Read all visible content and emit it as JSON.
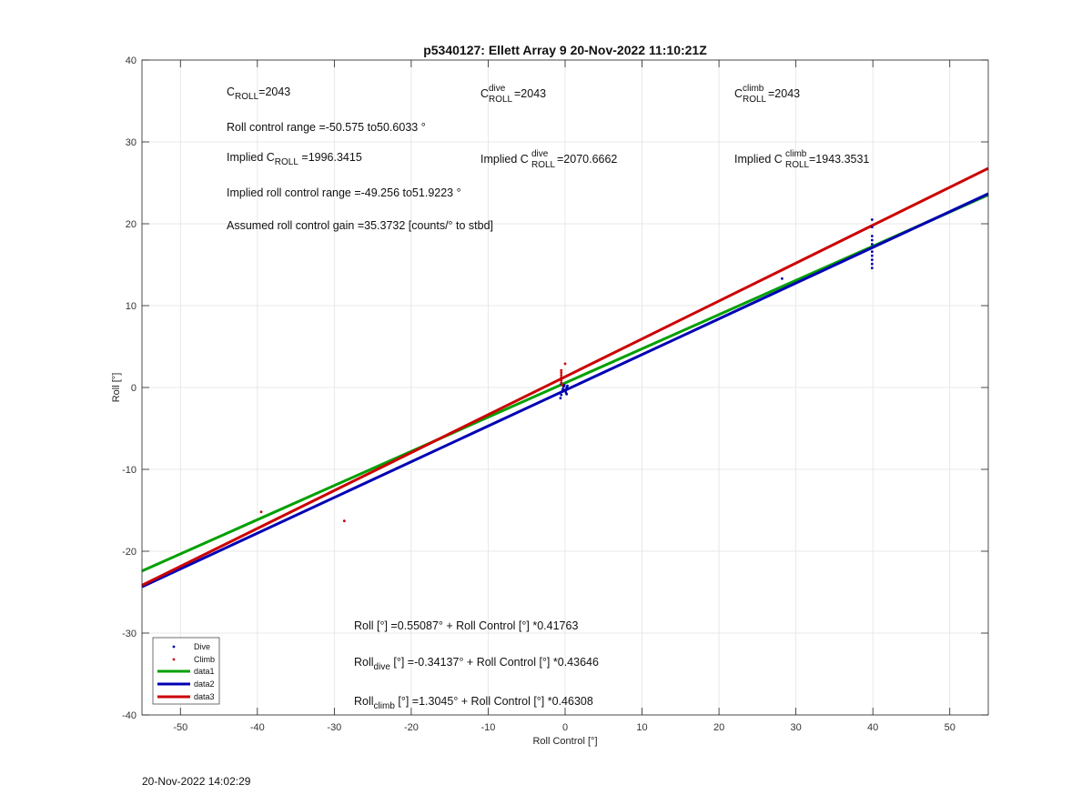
{
  "page": {
    "timestamp": "20-Nov-2022 14:02:29"
  },
  "chart_data": {
    "type": "scatter",
    "title": "p5340127: Ellett Array 9 20-Nov-2022 11:10:21Z",
    "xlabel": "Roll Control [°]",
    "ylabel": "Roll [°]",
    "xlim": [
      -55,
      55
    ],
    "ylim": [
      -40,
      40
    ],
    "xticks": [
      -50,
      -40,
      -30,
      -20,
      -10,
      0,
      10,
      20,
      30,
      40,
      50
    ],
    "yticks": [
      -40,
      -30,
      -20,
      -10,
      0,
      10,
      20,
      30,
      40
    ],
    "grid": true,
    "legend_position": "bottom-left",
    "series": [
      {
        "name": "Dive",
        "kind": "points",
        "color": "#0000aa",
        "points": [
          [
            -0.6,
            -1.3
          ],
          [
            -0.5,
            -0.9
          ],
          [
            -0.4,
            -0.5
          ],
          [
            -0.3,
            -0.2
          ],
          [
            -0.2,
            0.1
          ],
          [
            -0.1,
            0.3
          ],
          [
            0.0,
            -0.3
          ],
          [
            0.1,
            -0.6
          ],
          [
            0.2,
            0.0
          ],
          [
            0.3,
            0.2
          ],
          [
            -0.5,
            0.4
          ],
          [
            0.2,
            -0.8
          ],
          [
            28.2,
            13.3
          ],
          [
            39.9,
            14.6
          ],
          [
            39.9,
            15.1
          ],
          [
            39.9,
            15.6
          ],
          [
            39.9,
            16.1
          ],
          [
            39.9,
            16.6
          ],
          [
            39.9,
            17.1
          ],
          [
            39.9,
            17.5
          ],
          [
            39.9,
            18.0
          ],
          [
            39.9,
            18.5
          ],
          [
            39.9,
            19.6
          ],
          [
            39.9,
            20.5
          ]
        ]
      },
      {
        "name": "Climb",
        "kind": "points",
        "color": "#cc0000",
        "points": [
          [
            -39.5,
            -15.2
          ],
          [
            -28.7,
            -16.3
          ],
          [
            -0.5,
            0.6
          ],
          [
            -0.5,
            0.9
          ],
          [
            -0.5,
            1.2
          ],
          [
            -0.5,
            1.5
          ],
          [
            -0.5,
            1.8
          ],
          [
            -0.5,
            2.1
          ],
          [
            0.0,
            2.9
          ],
          [
            -0.4,
            0.3
          ]
        ]
      },
      {
        "name": "data1",
        "kind": "line",
        "color": "#00a000",
        "intercept": 0.55087,
        "slope": 0.41763
      },
      {
        "name": "data2",
        "kind": "line",
        "color": "#0000b4",
        "intercept": -0.34137,
        "slope": 0.43646
      },
      {
        "name": "data3",
        "kind": "line",
        "color": "#cc0000",
        "intercept": 1.3045,
        "slope": 0.46308
      }
    ],
    "annotations": {
      "c_roll": {
        "base": "C",
        "sub": "ROLL",
        "value": "=2043"
      },
      "c_roll_dive": {
        "base": "C",
        "sup": "dive",
        "sub": "ROLL",
        "value": " =2043"
      },
      "c_roll_climb": {
        "base": "C",
        "sup": "climb",
        "sub": "ROLL",
        "value": " =2043"
      },
      "range_text": "Roll control range =-50.575 to50.6033 °",
      "implied_prefix": "Implied C",
      "implied_sub": "ROLL",
      "implied_value": " =1996.3415",
      "implied_dive_prefix": "Implied C",
      "implied_dive_sup": "dive",
      "implied_dive_sub": "ROLL",
      "implied_dive_value": "=2070.6662",
      "implied_climb_prefix": "Implied C",
      "implied_climb_sup": "climb",
      "implied_climb_sub": "ROLL",
      "implied_climb_value": " =1943.3531",
      "implied_range_text": "Implied roll control range =-49.256 to51.9223 °",
      "gain_text": "Assumed roll control gain =35.3732 [counts/° to stbd]",
      "eq_all": "Roll [°] =0.55087° + Roll Control [°] *0.41763",
      "eq_dive_base": "Roll",
      "eq_dive_sub": "dive",
      "eq_dive_rest": " [°] =-0.34137° + Roll Control [°] *0.43646",
      "eq_climb_base": "Roll",
      "eq_climb_sub": "climb",
      "eq_climb_rest": " [°] =1.3045° + Roll Control [°] *0.46308"
    }
  }
}
